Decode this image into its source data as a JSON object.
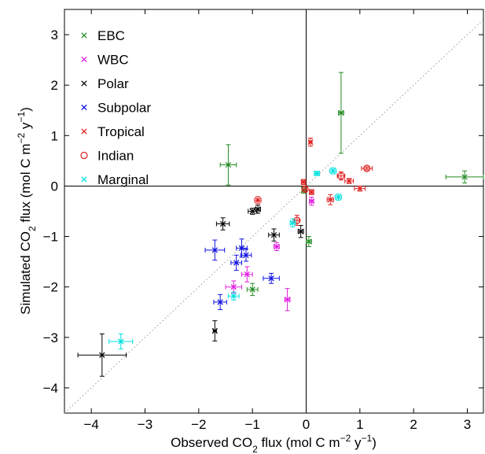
{
  "chart_data": {
    "type": "scatter",
    "xlabel": {
      "pre": "Observed CO",
      "sub": "2",
      "mid": " flux (mol C m",
      "sup1": "−2",
      "mid2": " y",
      "sup2": "−1",
      "post": ")"
    },
    "ylabel": {
      "pre": "Simulated CO",
      "sub": "2",
      "mid": " flux (mol C m",
      "sup1": "−2",
      "mid2": " y",
      "sup2": "−1",
      "post": ")"
    },
    "xlim": [
      -4.5,
      3.3
    ],
    "ylim": [
      -4.5,
      3.5
    ],
    "xticks": [
      -4,
      -3,
      -2,
      -1,
      0,
      1,
      2,
      3
    ],
    "yticks": [
      -4,
      -3,
      -2,
      -1,
      0,
      1,
      2,
      3
    ],
    "tick_labels_x": [
      "−4",
      "−3",
      "−2",
      "−1",
      "0",
      "1",
      "2",
      "3"
    ],
    "tick_labels_y": [
      "−4",
      "−3",
      "−2",
      "−1",
      "0",
      "1",
      "2",
      "3"
    ],
    "one_to_one_line": true,
    "zero_lines": true,
    "legend_position": "top-left",
    "series": [
      {
        "name": "EBC",
        "marker": "x",
        "color": "#228B22",
        "points": [
          {
            "x": -1.45,
            "y": 0.42,
            "xerr": 0.15,
            "yerr": 0.4
          },
          {
            "x": 0.65,
            "y": 1.45,
            "xerr": 0.05,
            "yerr": 0.8
          },
          {
            "x": 2.95,
            "y": 0.18,
            "xerr": 0.35,
            "yerr": 0.12
          },
          {
            "x": -1.0,
            "y": -2.05,
            "xerr": 0.1,
            "yerr": 0.12
          },
          {
            "x": 0.05,
            "y": -1.1,
            "xerr": 0.05,
            "yerr": 0.1
          },
          {
            "x": -0.05,
            "y": -0.08,
            "xerr": 0.03,
            "yerr": 0.06
          }
        ]
      },
      {
        "name": "WBC",
        "marker": "x",
        "color": "#E020E0",
        "points": [
          {
            "x": -1.35,
            "y": -2.0,
            "xerr": 0.15,
            "yerr": 0.12
          },
          {
            "x": -1.1,
            "y": -1.75,
            "xerr": 0.1,
            "yerr": 0.15
          },
          {
            "x": -0.55,
            "y": -1.2,
            "xerr": 0.05,
            "yerr": 0.08
          },
          {
            "x": -0.35,
            "y": -2.25,
            "xerr": 0.05,
            "yerr": 0.22
          },
          {
            "x": 0.1,
            "y": -0.3,
            "xerr": 0.04,
            "yerr": 0.08
          }
        ]
      },
      {
        "name": "Polar",
        "marker": "x",
        "color": "#000000",
        "points": [
          {
            "x": -3.8,
            "y": -3.35,
            "xerr": 0.45,
            "yerr": 0.42
          },
          {
            "x": -1.7,
            "y": -2.87,
            "xerr": 0.03,
            "yerr": 0.2
          },
          {
            "x": -1.55,
            "y": -0.75,
            "xerr": 0.12,
            "yerr": 0.12
          },
          {
            "x": -1.0,
            "y": -0.5,
            "xerr": 0.08,
            "yerr": 0.06
          },
          {
            "x": -0.9,
            "y": -0.46,
            "xerr": 0.05,
            "yerr": 0.08
          },
          {
            "x": -0.6,
            "y": -0.97,
            "xerr": 0.1,
            "yerr": 0.12
          },
          {
            "x": -0.1,
            "y": -0.9,
            "xerr": 0.05,
            "yerr": 0.12
          }
        ]
      },
      {
        "name": "Subpolar",
        "marker": "x",
        "color": "#1010E0",
        "points": [
          {
            "x": -1.7,
            "y": -1.27,
            "xerr": 0.18,
            "yerr": 0.2
          },
          {
            "x": -1.6,
            "y": -2.3,
            "xerr": 0.12,
            "yerr": 0.15
          },
          {
            "x": -1.3,
            "y": -1.52,
            "xerr": 0.1,
            "yerr": 0.15
          },
          {
            "x": -1.2,
            "y": -1.23,
            "xerr": 0.1,
            "yerr": 0.18
          },
          {
            "x": -1.12,
            "y": -1.37,
            "xerr": 0.1,
            "yerr": 0.12
          },
          {
            "x": -0.65,
            "y": -1.83,
            "xerr": 0.15,
            "yerr": 0.1
          }
        ]
      },
      {
        "name": "Tropical",
        "marker": "x",
        "color": "#E02020",
        "points": [
          {
            "x": -0.9,
            "y": -0.28,
            "xerr": 0.06,
            "yerr": 0.07
          },
          {
            "x": -0.05,
            "y": 0.08,
            "xerr": 0.04,
            "yerr": 0.05
          },
          {
            "x": 0.08,
            "y": 0.87,
            "xerr": 0.03,
            "yerr": 0.08
          },
          {
            "x": 0.1,
            "y": -0.12,
            "xerr": 0.04,
            "yerr": 0.05
          },
          {
            "x": 0.45,
            "y": -0.27,
            "xerr": 0.06,
            "yerr": 0.1
          },
          {
            "x": 0.8,
            "y": 0.1,
            "xerr": 0.08,
            "yerr": 0.05
          },
          {
            "x": 1.0,
            "y": -0.05,
            "xerr": 0.1,
            "yerr": 0.05
          }
        ]
      },
      {
        "name": "Indian",
        "marker": "o",
        "color": "#E02020",
        "points": [
          {
            "x": -0.02,
            "y": -0.06,
            "xerr": 0.03,
            "yerr": 0.06
          },
          {
            "x": -0.17,
            "y": -0.68,
            "xerr": 0.04,
            "yerr": 0.1
          },
          {
            "x": 0.65,
            "y": 0.2,
            "xerr": 0.07,
            "yerr": 0.08
          },
          {
            "x": 1.13,
            "y": 0.35,
            "xerr": 0.1,
            "yerr": 0.03
          }
        ]
      },
      {
        "name": "Marginal",
        "marker": "x",
        "color": "#00E0E0",
        "points": [
          {
            "x": -3.45,
            "y": -3.08,
            "xerr": 0.22,
            "yerr": 0.15
          },
          {
            "x": -1.35,
            "y": -2.18,
            "xerr": 0.1,
            "yerr": 0.08
          },
          {
            "x": -0.25,
            "y": -0.73,
            "xerr": 0.05,
            "yerr": 0.08
          },
          {
            "x": 0.2,
            "y": 0.25,
            "xerr": 0.05,
            "yerr": 0.04
          },
          {
            "x": 0.5,
            "y": 0.3,
            "xerr": 0.06,
            "yerr": 0.06
          },
          {
            "x": 0.6,
            "y": -0.22,
            "xerr": 0.06,
            "yerr": 0.06
          }
        ]
      }
    ]
  }
}
